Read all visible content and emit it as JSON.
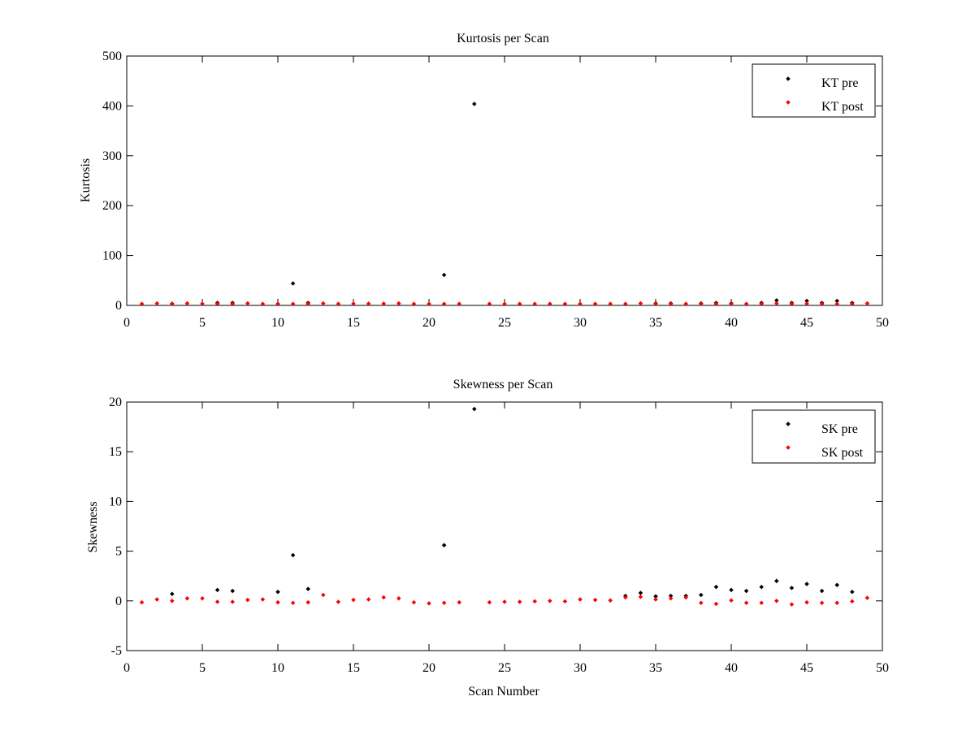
{
  "figure": {
    "background": "#ffffff"
  },
  "chart_data": [
    {
      "id": "kurtosis",
      "type": "scatter",
      "title": "Kurtosis per Scan",
      "xlabel": "",
      "ylabel": "Kurtosis",
      "xlim": [
        0,
        50
      ],
      "ylim": [
        0,
        500
      ],
      "xticks": [
        0,
        5,
        10,
        15,
        20,
        25,
        30,
        35,
        40,
        45,
        50
      ],
      "yticks": [
        0,
        100,
        200,
        300,
        400,
        500
      ],
      "grid": false,
      "legend": "top-right",
      "series": [
        {
          "name": "KT pre",
          "color": "#000000",
          "points": [
            [
              3,
              3.5
            ],
            [
              6,
              5
            ],
            [
              7,
              5
            ],
            [
              10,
              3
            ],
            [
              11,
              44
            ],
            [
              12,
              5
            ],
            [
              21,
              61
            ],
            [
              23,
              404
            ],
            [
              35,
              4
            ],
            [
              36,
              4
            ],
            [
              38,
              4
            ],
            [
              39,
              5
            ],
            [
              40,
              4
            ],
            [
              42,
              5
            ],
            [
              43,
              10
            ],
            [
              44,
              5
            ],
            [
              45,
              9
            ],
            [
              46,
              5
            ],
            [
              47,
              9
            ],
            [
              48,
              5
            ]
          ]
        },
        {
          "name": "KT post",
          "color": "#ff0000",
          "points": [
            [
              1,
              3
            ],
            [
              2,
              4
            ],
            [
              3,
              3
            ],
            [
              4,
              4
            ],
            [
              5,
              3.5
            ],
            [
              6,
              3
            ],
            [
              7,
              3
            ],
            [
              8,
              4
            ],
            [
              9,
              3
            ],
            [
              10,
              3
            ],
            [
              11,
              3
            ],
            [
              12,
              3
            ],
            [
              13,
              4
            ],
            [
              14,
              3
            ],
            [
              15,
              3.5
            ],
            [
              16,
              3.5
            ],
            [
              17,
              3.5
            ],
            [
              18,
              4
            ],
            [
              19,
              3
            ],
            [
              20,
              3
            ],
            [
              21,
              3
            ],
            [
              22,
              3
            ],
            [
              24,
              3
            ],
            [
              25,
              3
            ],
            [
              26,
              3
            ],
            [
              27,
              3
            ],
            [
              28,
              3
            ],
            [
              29,
              3
            ],
            [
              30,
              3
            ],
            [
              31,
              3
            ],
            [
              32,
              3
            ],
            [
              33,
              3
            ],
            [
              34,
              4
            ],
            [
              35,
              3
            ],
            [
              36,
              3
            ],
            [
              37,
              3
            ],
            [
              38,
              3
            ],
            [
              39,
              3
            ],
            [
              40,
              3
            ],
            [
              41,
              3
            ],
            [
              42,
              3
            ],
            [
              43,
              4
            ],
            [
              44,
              3
            ],
            [
              45,
              3.5
            ],
            [
              46,
              3
            ],
            [
              47,
              3
            ],
            [
              48,
              3
            ],
            [
              49,
              4
            ]
          ]
        }
      ]
    },
    {
      "id": "skewness",
      "type": "scatter",
      "title": "Skewness per Scan",
      "xlabel": "Scan Number",
      "ylabel": "Skewness",
      "xlim": [
        0,
        50
      ],
      "ylim": [
        -5,
        20
      ],
      "xticks": [
        0,
        5,
        10,
        15,
        20,
        25,
        30,
        35,
        40,
        45,
        50
      ],
      "yticks": [
        -5,
        0,
        5,
        10,
        15,
        20
      ],
      "grid": false,
      "legend": "top-right",
      "series": [
        {
          "name": "SK pre",
          "color": "#000000",
          "points": [
            [
              3,
              0.7
            ],
            [
              6,
              1.1
            ],
            [
              7,
              1.0
            ],
            [
              10,
              0.9
            ],
            [
              11,
              4.6
            ],
            [
              12,
              1.2
            ],
            [
              21,
              5.6
            ],
            [
              23,
              19.3
            ],
            [
              33,
              0.5
            ],
            [
              34,
              0.8
            ],
            [
              35,
              0.45
            ],
            [
              36,
              0.5
            ],
            [
              37,
              0.5
            ],
            [
              38,
              0.6
            ],
            [
              39,
              1.4
            ],
            [
              40,
              1.1
            ],
            [
              41,
              1.0
            ],
            [
              42,
              1.4
            ],
            [
              43,
              2.0
            ],
            [
              44,
              1.3
            ],
            [
              45,
              1.7
            ],
            [
              46,
              1.0
            ],
            [
              47,
              1.6
            ],
            [
              48,
              0.9
            ]
          ]
        },
        {
          "name": "SK post",
          "color": "#ff0000",
          "points": [
            [
              1,
              -0.15
            ],
            [
              2,
              0.15
            ],
            [
              3,
              0.0
            ],
            [
              4,
              0.25
            ],
            [
              5,
              0.25
            ],
            [
              6,
              -0.1
            ],
            [
              7,
              -0.1
            ],
            [
              8,
              0.1
            ],
            [
              9,
              0.15
            ],
            [
              10,
              -0.15
            ],
            [
              11,
              -0.2
            ],
            [
              12,
              -0.15
            ],
            [
              13,
              0.6
            ],
            [
              14,
              -0.1
            ],
            [
              15,
              0.1
            ],
            [
              16,
              0.15
            ],
            [
              17,
              0.35
            ],
            [
              18,
              0.25
            ],
            [
              19,
              -0.15
            ],
            [
              20,
              -0.25
            ],
            [
              21,
              -0.2
            ],
            [
              22,
              -0.15
            ],
            [
              24,
              -0.15
            ],
            [
              25,
              -0.1
            ],
            [
              26,
              -0.1
            ],
            [
              27,
              -0.05
            ],
            [
              28,
              0.0
            ],
            [
              29,
              -0.05
            ],
            [
              30,
              0.15
            ],
            [
              31,
              0.1
            ],
            [
              32,
              0.05
            ],
            [
              33,
              0.35
            ],
            [
              34,
              0.4
            ],
            [
              35,
              0.15
            ],
            [
              36,
              0.25
            ],
            [
              37,
              0.35
            ],
            [
              38,
              -0.2
            ],
            [
              39,
              -0.3
            ],
            [
              40,
              0.05
            ],
            [
              41,
              -0.2
            ],
            [
              42,
              -0.2
            ],
            [
              43,
              0.0
            ],
            [
              44,
              -0.35
            ],
            [
              45,
              -0.15
            ],
            [
              46,
              -0.2
            ],
            [
              47,
              -0.2
            ],
            [
              48,
              -0.05
            ],
            [
              49,
              0.3
            ]
          ]
        }
      ]
    }
  ]
}
